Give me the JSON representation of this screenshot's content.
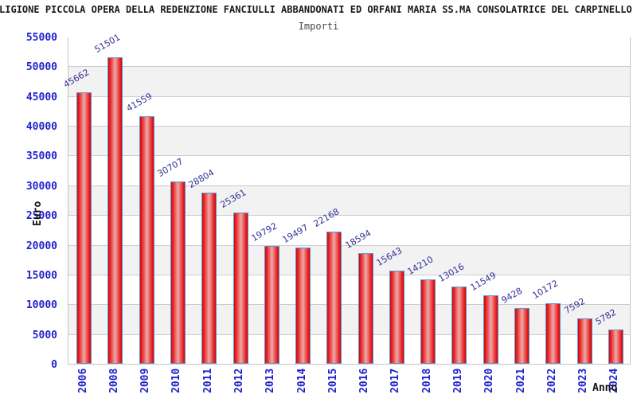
{
  "chart_data": {
    "type": "bar",
    "title": "RELIGIONE PICCOLA OPERA DELLA REDENZIONE FANCIULLI ABBANDONATI ED ORFANI MARIA SS.MA CONSOLATRICE DEL CARPINELLO (c",
    "subtitle": "Importi",
    "xlabel": "Anno",
    "ylabel": "Euro",
    "categories": [
      "2006",
      "2008",
      "2009",
      "2010",
      "2011",
      "2012",
      "2013",
      "2014",
      "2015",
      "2016",
      "2017",
      "2018",
      "2019",
      "2020",
      "2021",
      "2022",
      "2023",
      "2024"
    ],
    "values": [
      45662,
      51501,
      41559,
      30707,
      28804,
      25361,
      19792,
      19497,
      22168,
      18594,
      15643,
      14210,
      13016,
      11549,
      9428,
      10172,
      7592,
      5782
    ],
    "ylim": [
      0,
      55000
    ],
    "ytick_step": 5000,
    "legend": "none",
    "grid": "horizontal-bands",
    "colors": {
      "bar_edge": "#c40e0e",
      "bar_bright": "#ee2222",
      "bar_center": "#eaabab",
      "bar_border": "#5b95d5",
      "axis_tick_label": "#2222cc",
      "value_label": "#333399",
      "band_gray": "#f2f2f2",
      "band_white": "#ffffff",
      "grid_line": "#cccccc",
      "frame": "#c4c4c4",
      "title_color": "#1a1a1a",
      "subtitle_color": "#4a4a4a"
    }
  }
}
